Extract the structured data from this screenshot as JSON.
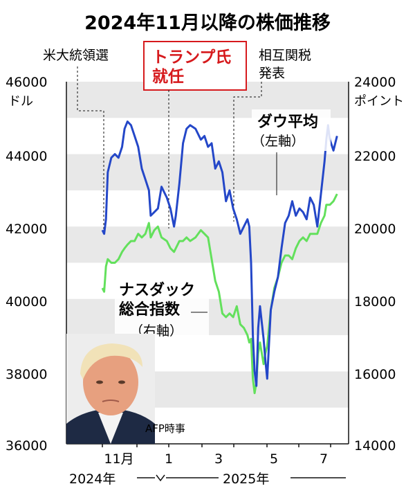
{
  "chart_data": {
    "type": "line",
    "title": "2024年11月以降の株価推移",
    "left_axis": {
      "unit": "ドル",
      "ylim": [
        36000,
        46000
      ],
      "ticks": [
        "46000",
        "44000",
        "42000",
        "40000",
        "38000",
        "36000"
      ]
    },
    "right_axis": {
      "unit": "ポイント",
      "ylim": [
        14000,
        24000
      ],
      "ticks": [
        "24000",
        "22000",
        "20000",
        "18000",
        "16000",
        "14000"
      ]
    },
    "x_ticks": [
      "11月",
      "1",
      "3",
      "5",
      "7"
    ],
    "year_labels": [
      "2024年",
      "2025年"
    ],
    "events": [
      "米大統領選",
      "トランプ氏\n就任",
      "相互関税\n発表"
    ],
    "series": [
      {
        "name": "ダウ平均",
        "axis_note": "（左軸）",
        "axis": "left",
        "color": "#2447c8",
        "values": [
          [
            0.0,
            41900
          ],
          [
            0.05,
            41800
          ],
          [
            0.1,
            42200
          ],
          [
            0.15,
            43500
          ],
          [
            0.25,
            43900
          ],
          [
            0.35,
            44000
          ],
          [
            0.45,
            43900
          ],
          [
            0.55,
            44200
          ],
          [
            0.62,
            44700
          ],
          [
            0.7,
            44900
          ],
          [
            0.8,
            44800
          ],
          [
            0.9,
            44500
          ],
          [
            1.0,
            44200
          ],
          [
            1.1,
            43600
          ],
          [
            1.2,
            43300
          ],
          [
            1.3,
            43000
          ],
          [
            1.35,
            42300
          ],
          [
            1.45,
            42400
          ],
          [
            1.55,
            42500
          ],
          [
            1.65,
            43100
          ],
          [
            1.8,
            42800
          ],
          [
            1.9,
            42500
          ],
          [
            2.0,
            42000
          ],
          [
            2.05,
            42300
          ],
          [
            2.15,
            43200
          ],
          [
            2.25,
            44300
          ],
          [
            2.35,
            44700
          ],
          [
            2.45,
            44800
          ],
          [
            2.6,
            44700
          ],
          [
            2.75,
            44400
          ],
          [
            2.85,
            44500
          ],
          [
            2.95,
            44200
          ],
          [
            3.05,
            44300
          ],
          [
            3.15,
            43600
          ],
          [
            3.25,
            43800
          ],
          [
            3.35,
            43500
          ],
          [
            3.45,
            42700
          ],
          [
            3.55,
            43000
          ],
          [
            3.65,
            42500
          ],
          [
            3.75,
            42200
          ],
          [
            3.85,
            41800
          ],
          [
            3.95,
            42000
          ],
          [
            4.05,
            42200
          ],
          [
            4.1,
            42000
          ],
          [
            4.15,
            41000
          ],
          [
            4.2,
            39000
          ],
          [
            4.25,
            38000
          ],
          [
            4.3,
            37600
          ],
          [
            4.35,
            39200
          ],
          [
            4.4,
            39800
          ],
          [
            4.5,
            38900
          ],
          [
            4.55,
            38300
          ],
          [
            4.6,
            37800
          ],
          [
            4.7,
            39700
          ],
          [
            4.8,
            40200
          ],
          [
            4.9,
            40600
          ],
          [
            5.0,
            41400
          ],
          [
            5.1,
            42100
          ],
          [
            5.2,
            42300
          ],
          [
            5.3,
            42700
          ],
          [
            5.4,
            42300
          ],
          [
            5.5,
            42500
          ],
          [
            5.6,
            42400
          ],
          [
            5.7,
            42200
          ],
          [
            5.8,
            42800
          ],
          [
            5.9,
            42600
          ],
          [
            6.0,
            42000
          ],
          [
            6.1,
            42900
          ],
          [
            6.2,
            43800
          ],
          [
            6.25,
            44400
          ],
          [
            6.3,
            44800
          ],
          [
            6.35,
            44400
          ],
          [
            6.45,
            44100
          ],
          [
            6.5,
            44300
          ],
          [
            6.55,
            44500
          ]
        ]
      },
      {
        "name": "ナスダック\n総合指数",
        "axis_note": "（右軸）",
        "axis": "right",
        "color": "#63e05c",
        "values": [
          [
            0.0,
            18300
          ],
          [
            0.05,
            18200
          ],
          [
            0.1,
            18900
          ],
          [
            0.15,
            19100
          ],
          [
            0.25,
            19000
          ],
          [
            0.35,
            19000
          ],
          [
            0.45,
            19100
          ],
          [
            0.55,
            19300
          ],
          [
            0.62,
            19400
          ],
          [
            0.7,
            19500
          ],
          [
            0.8,
            19600
          ],
          [
            0.9,
            19600
          ],
          [
            1.0,
            19800
          ],
          [
            1.1,
            19700
          ],
          [
            1.2,
            19800
          ],
          [
            1.3,
            20100
          ],
          [
            1.35,
            19700
          ],
          [
            1.45,
            19900
          ],
          [
            1.55,
            20000
          ],
          [
            1.65,
            19700
          ],
          [
            1.8,
            19600
          ],
          [
            1.9,
            19400
          ],
          [
            2.0,
            19300
          ],
          [
            2.05,
            19400
          ],
          [
            2.15,
            19600
          ],
          [
            2.25,
            19600
          ],
          [
            2.35,
            19700
          ],
          [
            2.45,
            19600
          ],
          [
            2.6,
            19700
          ],
          [
            2.75,
            19900
          ],
          [
            2.85,
            19800
          ],
          [
            2.95,
            19700
          ],
          [
            3.05,
            19100
          ],
          [
            3.15,
            18500
          ],
          [
            3.25,
            18200
          ],
          [
            3.35,
            17600
          ],
          [
            3.45,
            17500
          ],
          [
            3.55,
            17600
          ],
          [
            3.65,
            17500
          ],
          [
            3.75,
            17800
          ],
          [
            3.85,
            17300
          ],
          [
            3.95,
            17200
          ],
          [
            4.05,
            17000
          ],
          [
            4.1,
            16800
          ],
          [
            4.15,
            16900
          ],
          [
            4.2,
            15800
          ],
          [
            4.25,
            15400
          ],
          [
            4.3,
            15700
          ],
          [
            4.35,
            16500
          ],
          [
            4.4,
            16800
          ],
          [
            4.5,
            16200
          ],
          [
            4.55,
            16500
          ],
          [
            4.6,
            16700
          ],
          [
            4.7,
            17700
          ],
          [
            4.8,
            18300
          ],
          [
            4.9,
            18600
          ],
          [
            5.0,
            19000
          ],
          [
            5.1,
            19200
          ],
          [
            5.2,
            19200
          ],
          [
            5.3,
            19100
          ],
          [
            5.4,
            19400
          ],
          [
            5.5,
            19600
          ],
          [
            5.6,
            19700
          ],
          [
            5.7,
            19600
          ],
          [
            5.8,
            19800
          ],
          [
            5.9,
            19800
          ],
          [
            6.0,
            19800
          ],
          [
            6.1,
            20100
          ],
          [
            6.2,
            20300
          ],
          [
            6.25,
            20600
          ],
          [
            6.3,
            20600
          ],
          [
            6.35,
            20600
          ],
          [
            6.45,
            20700
          ],
          [
            6.5,
            20800
          ],
          [
            6.55,
            20900
          ]
        ]
      }
    ],
    "grid": "alternating-bands"
  },
  "photo_credit": "AFP時事"
}
